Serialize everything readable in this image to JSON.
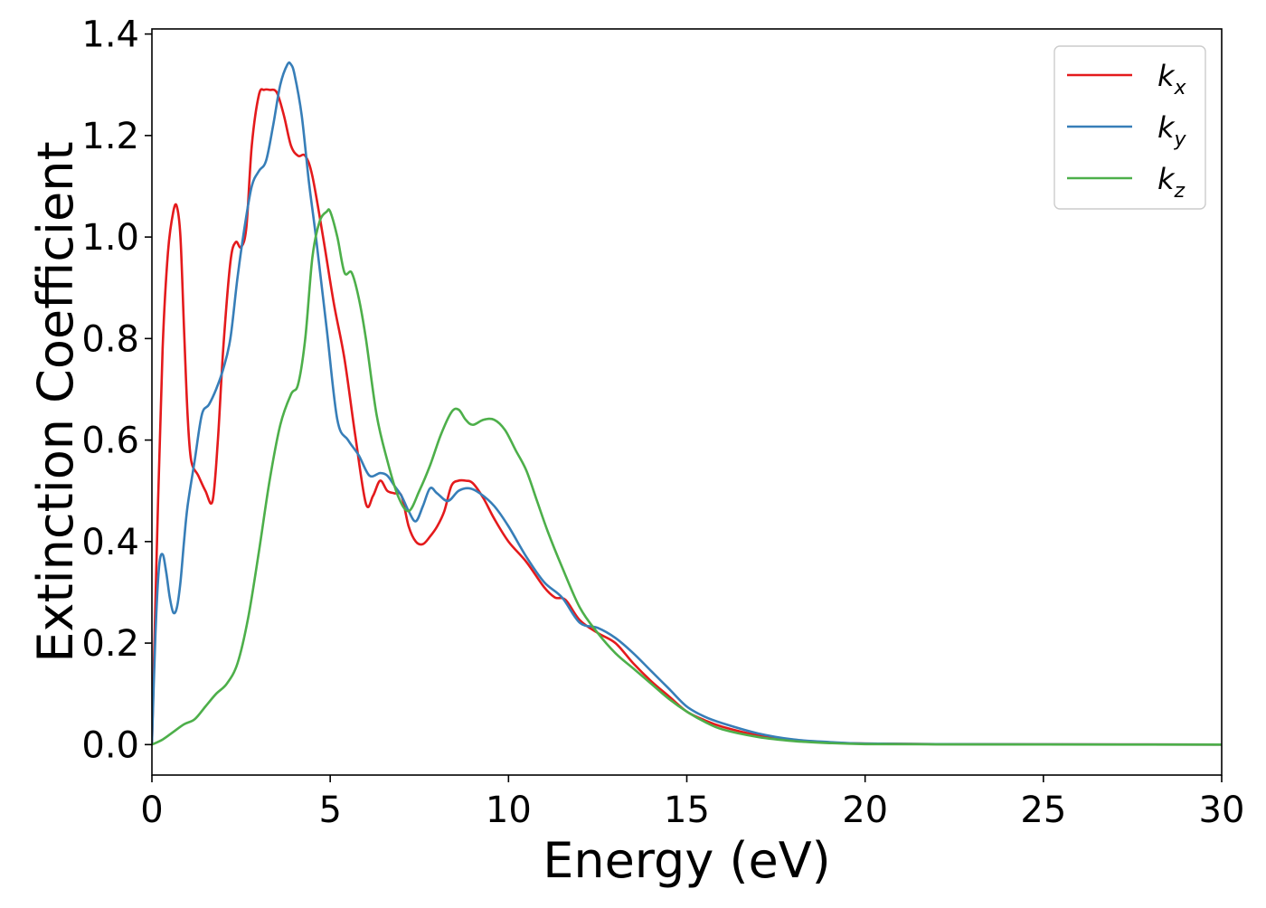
{
  "chart_data": {
    "type": "line",
    "title": "",
    "xlabel": "Energy (eV)",
    "ylabel": "Extinction Coefficient",
    "xlim": [
      0,
      30
    ],
    "ylim": [
      -0.06,
      1.41
    ],
    "xticks": [
      0,
      5,
      10,
      15,
      20,
      25,
      30
    ],
    "xtick_labels": [
      "0",
      "5",
      "10",
      "15",
      "20",
      "25",
      "30"
    ],
    "yticks": [
      0.0,
      0.2,
      0.4,
      0.6,
      0.8,
      1.0,
      1.2,
      1.4
    ],
    "ytick_labels": [
      "0.0",
      "0.2",
      "0.4",
      "0.6",
      "0.8",
      "1.0",
      "1.2",
      "1.4"
    ],
    "grid": false,
    "legend_position": "top-right",
    "series": [
      {
        "name": "k_x",
        "label_main": "k",
        "label_sub": "x",
        "color": "#e41a1c",
        "x": [
          0,
          0.15,
          0.3,
          0.45,
          0.6,
          0.7,
          0.8,
          0.9,
          1.0,
          1.1,
          1.3,
          1.5,
          1.7,
          1.85,
          2.0,
          2.2,
          2.35,
          2.5,
          2.65,
          2.8,
          3.0,
          3.15,
          3.3,
          3.5,
          3.7,
          3.9,
          4.1,
          4.3,
          4.5,
          4.8,
          5.1,
          5.4,
          5.7,
          6.0,
          6.2,
          6.4,
          6.6,
          6.8,
          7.0,
          7.2,
          7.4,
          7.6,
          7.8,
          8.0,
          8.2,
          8.4,
          8.6,
          8.8,
          9.0,
          9.3,
          9.6,
          10.0,
          10.5,
          11.0,
          11.3,
          11.6,
          12.0,
          12.5,
          13.0,
          13.5,
          14.0,
          14.5,
          15.0,
          15.5,
          16.0,
          17.0,
          18.0,
          19.0,
          20.0,
          22.0,
          25.0,
          30.0
        ],
        "y": [
          0.0,
          0.42,
          0.78,
          0.97,
          1.05,
          1.06,
          1.0,
          0.82,
          0.65,
          0.56,
          0.53,
          0.5,
          0.48,
          0.6,
          0.78,
          0.95,
          0.99,
          0.98,
          1.02,
          1.18,
          1.28,
          1.29,
          1.29,
          1.285,
          1.24,
          1.18,
          1.16,
          1.16,
          1.12,
          1.0,
          0.87,
          0.76,
          0.61,
          0.475,
          0.49,
          0.52,
          0.5,
          0.495,
          0.49,
          0.43,
          0.4,
          0.395,
          0.41,
          0.43,
          0.46,
          0.51,
          0.52,
          0.52,
          0.515,
          0.485,
          0.445,
          0.4,
          0.36,
          0.31,
          0.29,
          0.285,
          0.245,
          0.22,
          0.2,
          0.16,
          0.125,
          0.095,
          0.065,
          0.048,
          0.035,
          0.018,
          0.008,
          0.004,
          0.002,
          0.001,
          0.0005,
          0.0
        ]
      },
      {
        "name": "k_y",
        "label_main": "k",
        "label_sub": "y",
        "color": "#377eb8",
        "x": [
          0,
          0.1,
          0.2,
          0.3,
          0.4,
          0.5,
          0.6,
          0.7,
          0.8,
          0.9,
          1.0,
          1.2,
          1.4,
          1.6,
          1.8,
          2.0,
          2.2,
          2.4,
          2.6,
          2.8,
          3.0,
          3.2,
          3.4,
          3.6,
          3.8,
          3.9,
          4.0,
          4.2,
          4.4,
          4.6,
          4.9,
          5.2,
          5.5,
          5.8,
          6.1,
          6.4,
          6.6,
          6.8,
          7.0,
          7.2,
          7.4,
          7.6,
          7.8,
          8.0,
          8.3,
          8.6,
          8.9,
          9.2,
          9.6,
          10.0,
          10.5,
          11.0,
          11.5,
          12.0,
          12.5,
          13.0,
          13.5,
          14.0,
          14.5,
          15.0,
          15.5,
          16.0,
          17.0,
          18.0,
          19.0,
          20.0,
          22.0,
          25.0,
          30.0
        ],
        "y": [
          0.0,
          0.22,
          0.35,
          0.375,
          0.34,
          0.29,
          0.26,
          0.27,
          0.32,
          0.4,
          0.47,
          0.56,
          0.65,
          0.67,
          0.7,
          0.74,
          0.8,
          0.92,
          1.02,
          1.1,
          1.13,
          1.15,
          1.22,
          1.3,
          1.34,
          1.34,
          1.32,
          1.24,
          1.11,
          1.0,
          0.82,
          0.64,
          0.6,
          0.57,
          0.53,
          0.535,
          0.53,
          0.51,
          0.49,
          0.46,
          0.44,
          0.47,
          0.505,
          0.495,
          0.48,
          0.5,
          0.505,
          0.495,
          0.47,
          0.43,
          0.37,
          0.32,
          0.29,
          0.24,
          0.23,
          0.21,
          0.18,
          0.145,
          0.11,
          0.075,
          0.055,
          0.042,
          0.022,
          0.01,
          0.005,
          0.002,
          0.001,
          0.0005,
          0.0
        ]
      },
      {
        "name": "k_z",
        "label_main": "k",
        "label_sub": "z",
        "color": "#4daf4a",
        "x": [
          0,
          0.3,
          0.6,
          0.9,
          1.2,
          1.5,
          1.8,
          2.1,
          2.4,
          2.7,
          3.0,
          3.3,
          3.6,
          3.9,
          4.1,
          4.3,
          4.5,
          4.7,
          4.9,
          5.0,
          5.2,
          5.4,
          5.6,
          5.8,
          6.0,
          6.3,
          6.6,
          6.9,
          7.2,
          7.5,
          7.8,
          8.1,
          8.4,
          8.6,
          8.8,
          9.0,
          9.3,
          9.6,
          9.9,
          10.2,
          10.5,
          10.8,
          11.1,
          11.5,
          12.0,
          12.5,
          13.0,
          13.5,
          14.0,
          14.5,
          15.0,
          15.5,
          16.0,
          17.0,
          18.0,
          19.0,
          20.0,
          22.0,
          25.0,
          30.0
        ],
        "y": [
          0.0,
          0.01,
          0.025,
          0.04,
          0.05,
          0.075,
          0.1,
          0.12,
          0.16,
          0.25,
          0.38,
          0.52,
          0.63,
          0.69,
          0.71,
          0.8,
          0.96,
          1.03,
          1.05,
          1.05,
          1.0,
          0.93,
          0.93,
          0.88,
          0.8,
          0.65,
          0.56,
          0.49,
          0.46,
          0.5,
          0.55,
          0.61,
          0.655,
          0.66,
          0.64,
          0.63,
          0.64,
          0.64,
          0.62,
          0.58,
          0.54,
          0.48,
          0.42,
          0.35,
          0.27,
          0.22,
          0.18,
          0.15,
          0.12,
          0.09,
          0.065,
          0.045,
          0.03,
          0.015,
          0.007,
          0.003,
          0.001,
          0.0005,
          0.0002,
          0.0
        ]
      }
    ]
  }
}
